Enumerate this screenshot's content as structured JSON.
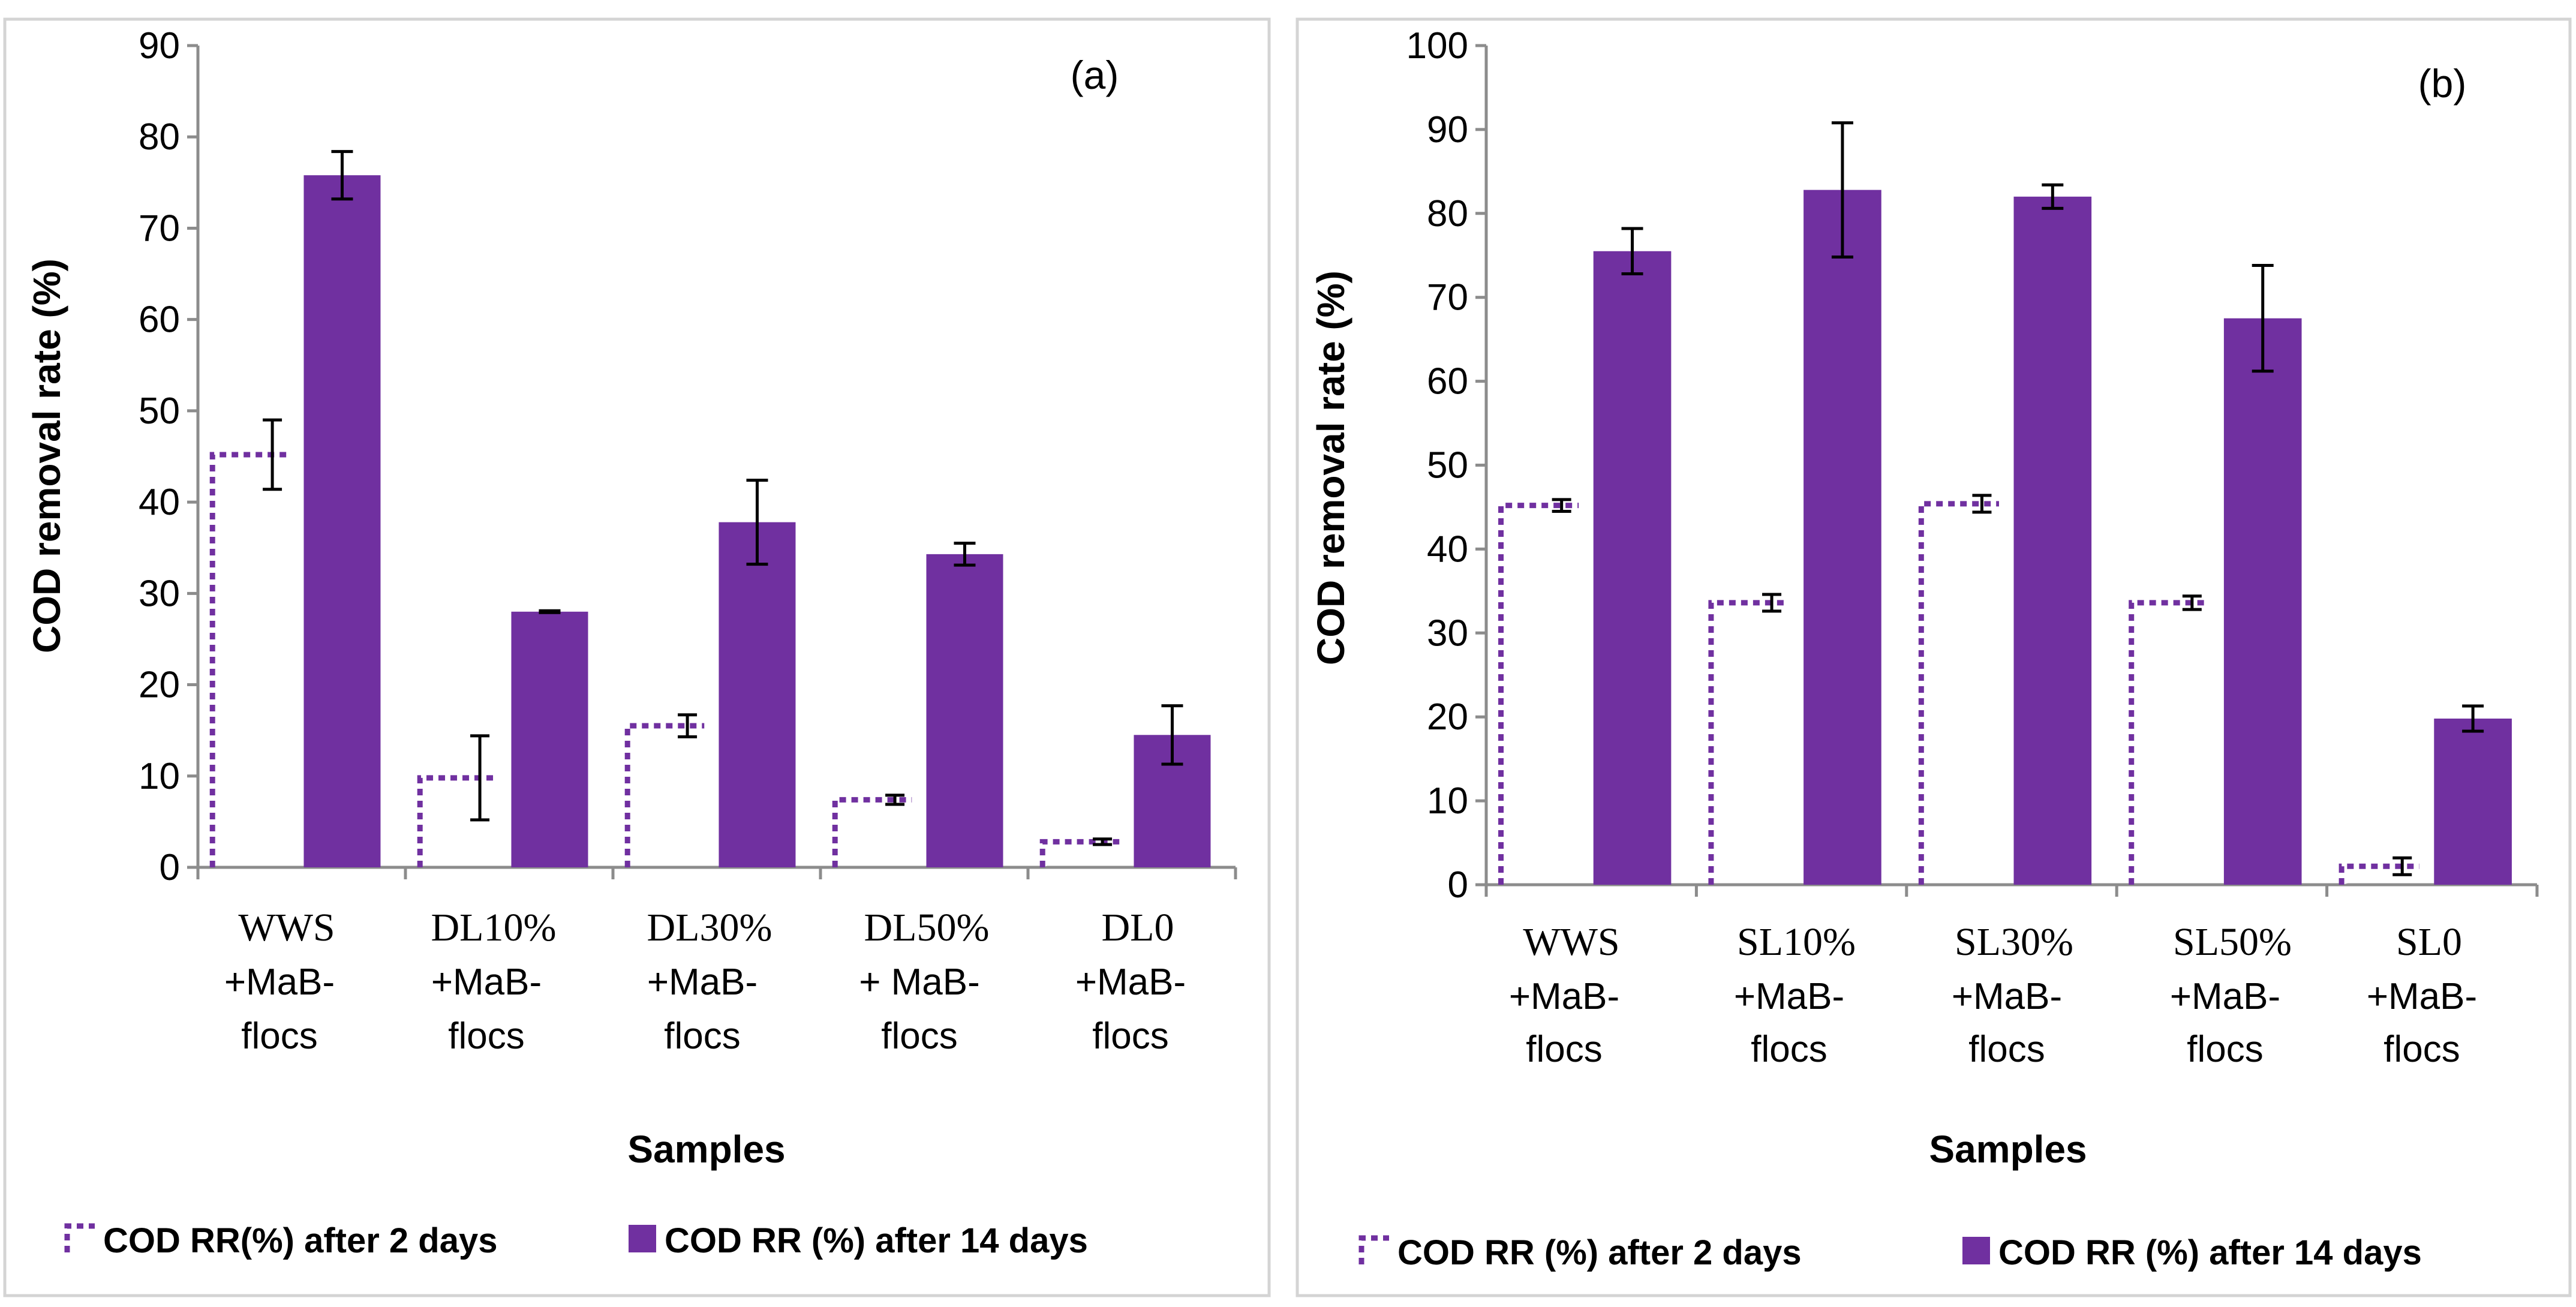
{
  "colors": {
    "series_2day": "#7030a0",
    "series_14day": "#7030a0",
    "axis": "#8c8c8c",
    "frame": "#d4d4d4"
  },
  "chart_data": [
    {
      "panel": "(a)",
      "type": "bar",
      "ylabel": "COD removal rate (%)",
      "xlabel": "Samples",
      "ylim": [
        0,
        90
      ],
      "yticks": [
        0,
        10,
        20,
        30,
        40,
        50,
        60,
        70,
        80,
        90
      ],
      "categories": [
        {
          "lines": [
            "WWS",
            "+MaB-",
            "flocs"
          ],
          "fonts": [
            "serif",
            "sans",
            "sans"
          ]
        },
        {
          "lines": [
            "DL10%",
            "+MaB-",
            "flocs"
          ],
          "fonts": [
            "serif",
            "sans",
            "sans"
          ]
        },
        {
          "lines": [
            "DL30%",
            "+MaB-",
            "flocs"
          ],
          "fonts": [
            "serif",
            "sans",
            "sans"
          ]
        },
        {
          "lines": [
            "DL50%",
            "+ MaB-",
            "flocs"
          ],
          "fonts": [
            "serif",
            "sans",
            "sans"
          ]
        },
        {
          "lines": [
            "DL0",
            "+MaB-",
            "flocs"
          ],
          "fonts": [
            "serif",
            "sans",
            "sans"
          ]
        }
      ],
      "series": [
        {
          "name": "COD RR(%) after 2 days",
          "style": "dotted-outline",
          "values": [
            45.2,
            9.8,
            15.5,
            7.4,
            2.8
          ],
          "errors": [
            3.8,
            4.6,
            1.2,
            0.5,
            0.3
          ]
        },
        {
          "name": "COD RR (%) after 14 days",
          "style": "filled",
          "values": [
            75.8,
            28.0,
            37.8,
            34.3,
            14.5
          ],
          "errors": [
            2.6,
            0.1,
            4.6,
            1.2,
            3.2
          ]
        }
      ]
    },
    {
      "panel": "(b)",
      "type": "bar",
      "ylabel": "COD removal rate (%)",
      "xlabel": "Samples",
      "ylim": [
        0,
        100
      ],
      "yticks": [
        0,
        10,
        20,
        30,
        40,
        50,
        60,
        70,
        80,
        90,
        100
      ],
      "categories": [
        {
          "lines": [
            "WWS",
            "+MaB-",
            "flocs"
          ],
          "fonts": [
            "serif",
            "sans",
            "sans"
          ]
        },
        {
          "lines": [
            "SL10%",
            "+MaB-",
            "flocs"
          ],
          "fonts": [
            "serif",
            "sans",
            "sans"
          ]
        },
        {
          "lines": [
            "SL30%",
            "+MaB-",
            "flocs"
          ],
          "fonts": [
            "serif",
            "sans",
            "sans"
          ]
        },
        {
          "lines": [
            "SL50%",
            "+MaB-",
            "flocs"
          ],
          "fonts": [
            "serif",
            "sans",
            "sans"
          ]
        },
        {
          "lines": [
            "SL0",
            "+MaB-",
            "flocs"
          ],
          "fonts": [
            "serif",
            "sans",
            "sans"
          ]
        }
      ],
      "series": [
        {
          "name": "COD RR (%) after 2 days",
          "style": "dotted-outline",
          "values": [
            45.2,
            33.6,
            45.4,
            33.6,
            2.2
          ],
          "errors": [
            0.7,
            1.0,
            1.0,
            0.8,
            1.0
          ]
        },
        {
          "name": "COD RR (%) after 14 days",
          "style": "filled",
          "values": [
            75.5,
            82.8,
            82.0,
            67.5,
            19.8
          ],
          "errors": [
            2.7,
            8.0,
            1.4,
            6.3,
            1.5
          ]
        }
      ]
    }
  ]
}
